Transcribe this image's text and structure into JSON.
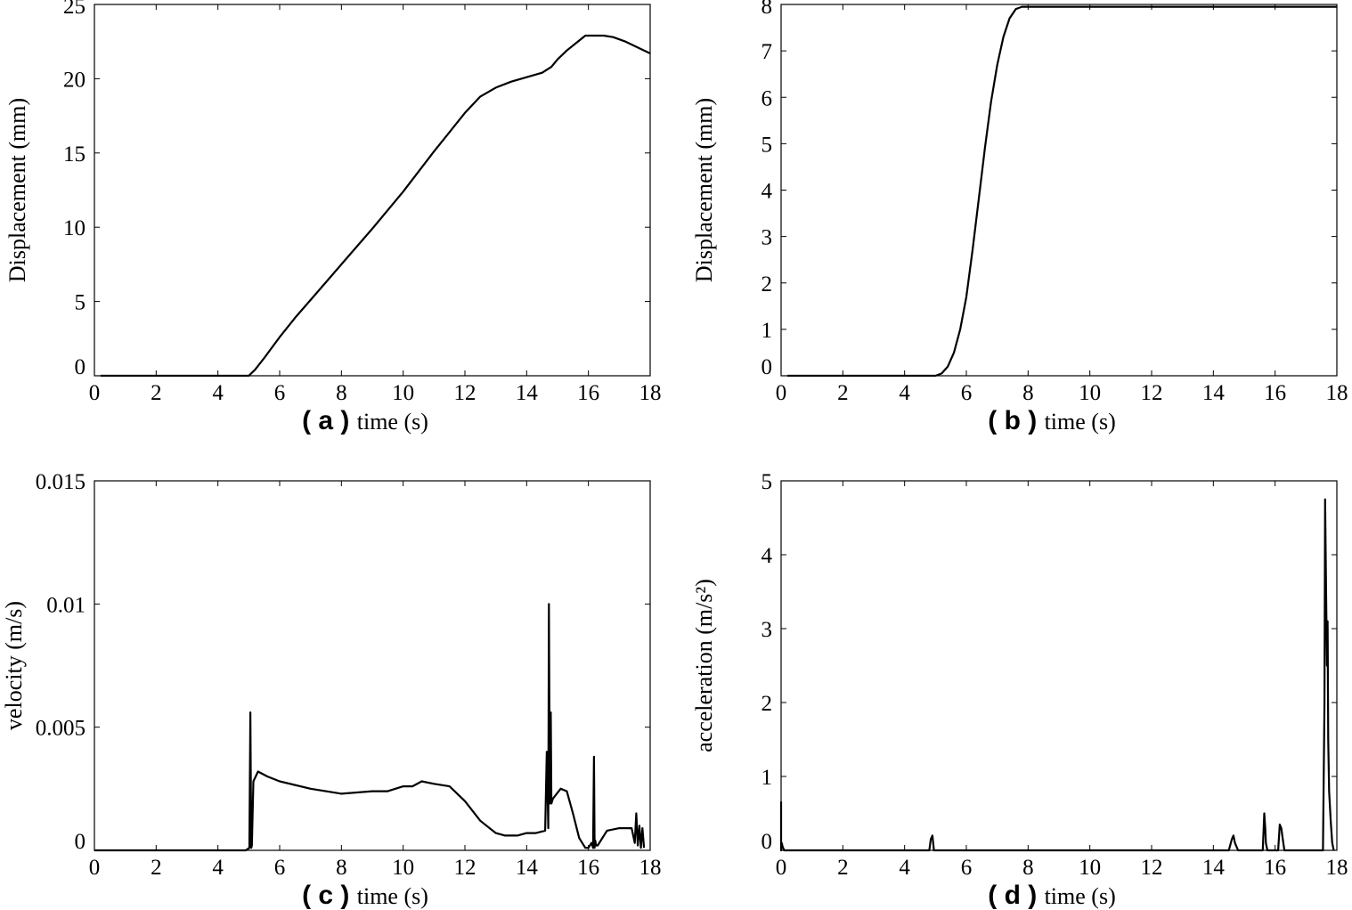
{
  "chart_data": [
    {
      "type": "line",
      "panel_label": "( a )",
      "xlabel": "time (s)",
      "ylabel": "Displacement (mm)",
      "xlim": [
        0,
        18
      ],
      "ylim": [
        0,
        25
      ],
      "xticks": [
        0,
        2,
        4,
        6,
        8,
        10,
        12,
        14,
        16,
        18
      ],
      "yticks": [
        0,
        5,
        10,
        15,
        20,
        25
      ],
      "series": [
        {
          "name": "displacement",
          "x": [
            0.2,
            4.0,
            5.0,
            5.2,
            5.5,
            6.0,
            6.5,
            7.0,
            8.0,
            9.0,
            10.0,
            11.0,
            11.5,
            12.0,
            12.5,
            13.0,
            13.5,
            14.0,
            14.5,
            14.8,
            15.0,
            15.3,
            15.6,
            15.9,
            16.2,
            16.5,
            16.8,
            17.2,
            17.6,
            18.0
          ],
          "values": [
            0,
            0,
            0,
            0.4,
            1.2,
            2.6,
            3.9,
            5.1,
            7.5,
            9.9,
            12.4,
            15.1,
            16.4,
            17.7,
            18.8,
            19.4,
            19.8,
            20.1,
            20.4,
            20.8,
            21.3,
            21.9,
            22.4,
            22.9,
            22.9,
            22.9,
            22.8,
            22.5,
            22.1,
            21.7
          ]
        }
      ]
    },
    {
      "type": "line",
      "panel_label": "( b )",
      "xlabel": "time (s)",
      "ylabel": "Displacement (mm)",
      "xlim": [
        0,
        18
      ],
      "ylim": [
        0,
        8
      ],
      "xticks": [
        0,
        2,
        4,
        6,
        8,
        10,
        12,
        14,
        16,
        18
      ],
      "yticks": [
        0,
        1,
        2,
        3,
        4,
        5,
        6,
        7,
        8
      ],
      "series": [
        {
          "name": "displacement",
          "x": [
            0.2,
            4.0,
            5.0,
            5.2,
            5.4,
            5.6,
            5.8,
            6.0,
            6.2,
            6.4,
            6.6,
            6.8,
            7.0,
            7.2,
            7.4,
            7.6,
            7.8,
            8.0,
            10.0,
            14.0,
            18.0
          ],
          "values": [
            0,
            0,
            0,
            0.05,
            0.2,
            0.5,
            1.0,
            1.7,
            2.7,
            3.8,
            4.9,
            5.9,
            6.7,
            7.3,
            7.7,
            7.9,
            7.95,
            7.95,
            7.95,
            7.95,
            7.95
          ]
        }
      ]
    },
    {
      "type": "line",
      "panel_label": "( c )",
      "xlabel": "time (s)",
      "ylabel": "velocity (m/s)",
      "xlim": [
        0,
        18
      ],
      "ylim": [
        0,
        0.015
      ],
      "xticks": [
        0,
        2,
        4,
        6,
        8,
        10,
        12,
        14,
        16,
        18
      ],
      "yticks": [
        0,
        0.005,
        0.01,
        0.015
      ],
      "ytick_labels": [
        "0",
        "0.005",
        "0.01",
        "0.015"
      ],
      "series": [
        {
          "name": "velocity",
          "x": [
            0.0,
            4.9,
            5.02,
            5.05,
            5.08,
            5.1,
            5.15,
            5.3,
            5.6,
            6.0,
            7.0,
            8.0,
            9.0,
            9.5,
            10.0,
            10.3,
            10.6,
            11.0,
            11.5,
            12.0,
            12.5,
            13.0,
            13.3,
            13.7,
            14.0,
            14.3,
            14.6,
            14.65,
            14.7,
            14.72,
            14.75,
            14.78,
            14.8,
            14.85,
            15.1,
            15.3,
            15.5,
            15.7,
            15.9,
            16.0,
            16.1,
            16.15,
            16.18,
            16.2,
            16.22,
            16.25,
            16.3,
            16.6,
            17.0,
            17.4,
            17.5,
            17.55,
            17.6,
            17.65,
            17.7,
            17.75,
            17.8
          ],
          "values": [
            0,
            0,
            0.0001,
            0.0056,
            0.0001,
            0.0002,
            0.0028,
            0.0032,
            0.003,
            0.0028,
            0.0025,
            0.0023,
            0.0024,
            0.0024,
            0.0026,
            0.0026,
            0.0028,
            0.0027,
            0.0026,
            0.002,
            0.0012,
            0.0007,
            0.0006,
            0.0006,
            0.0007,
            0.0007,
            0.0008,
            0.004,
            0.0009,
            0.01,
            0.0019,
            0.0056,
            0.0019,
            0.0021,
            0.0025,
            0.0024,
            0.0015,
            0.0005,
            0.0001,
            0.0001,
            0.0003,
            0.0001,
            0.0038,
            0.0001,
            0.0004,
            0.0002,
            0.0002,
            0.0008,
            0.0009,
            0.0009,
            0.0003,
            0.0015,
            0.0002,
            0.001,
            0.0001,
            0.0009,
            0.0001
          ]
        }
      ]
    },
    {
      "type": "line",
      "panel_label": "( d )",
      "xlabel": "time (s)",
      "ylabel": "acceleration (m/s²)",
      "xlim": [
        0,
        18
      ],
      "ylim": [
        0,
        5
      ],
      "xticks": [
        0,
        2,
        4,
        6,
        8,
        10,
        12,
        14,
        16,
        18
      ],
      "yticks": [
        0,
        1,
        2,
        3,
        4,
        5
      ],
      "series": [
        {
          "name": "acceleration",
          "x": [
            -0.1,
            -0.05,
            0.0,
            0.02,
            0.05,
            0.1,
            4.8,
            4.85,
            4.9,
            4.95,
            14.5,
            14.6,
            14.65,
            14.7,
            14.8,
            15.6,
            15.65,
            15.68,
            15.7,
            15.75,
            16.1,
            16.15,
            16.2,
            16.25,
            16.3,
            17.55,
            17.6,
            17.62,
            17.65,
            17.68,
            17.7,
            17.72,
            17.75,
            17.8,
            17.85,
            17.9
          ],
          "values": [
            0,
            0.65,
            0,
            0.1,
            0.05,
            0,
            0,
            0.15,
            0.2,
            0,
            0,
            0.15,
            0.2,
            0.1,
            0,
            0,
            0.5,
            0.3,
            0.1,
            0,
            0,
            0.35,
            0.3,
            0.15,
            0,
            0,
            2.0,
            4.75,
            3.5,
            2.5,
            3.1,
            1.5,
            0.8,
            0.4,
            0.1,
            0
          ]
        }
      ]
    }
  ]
}
